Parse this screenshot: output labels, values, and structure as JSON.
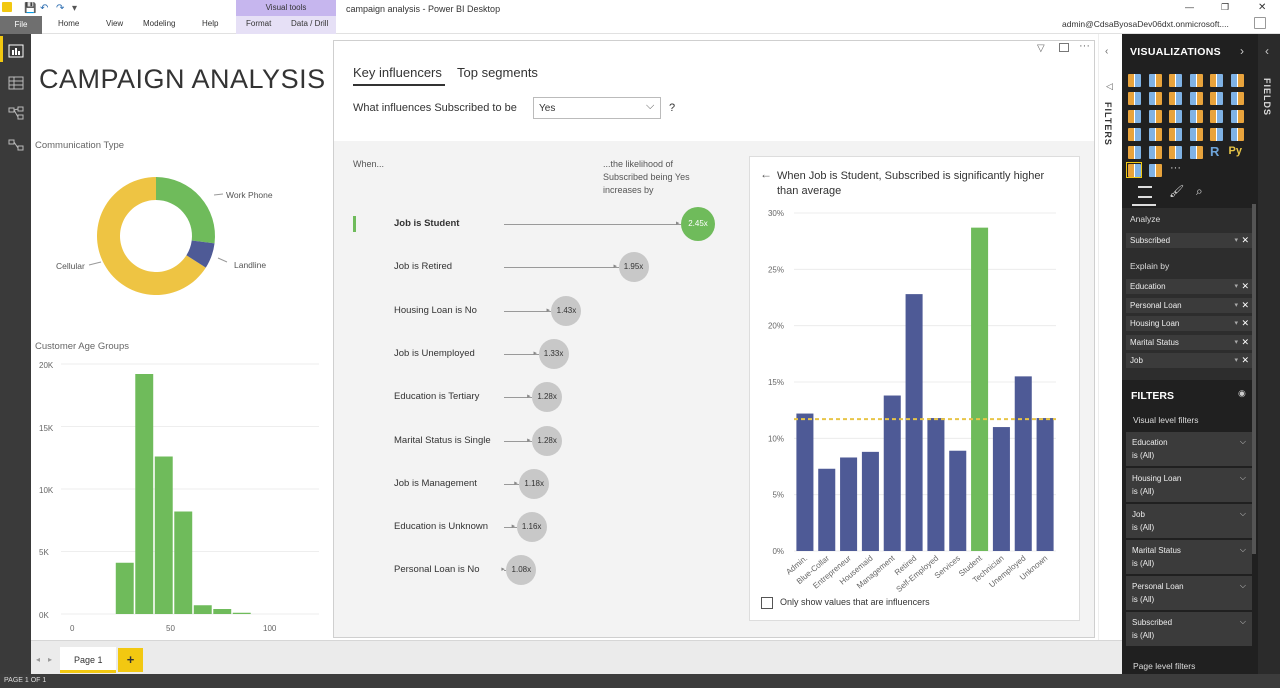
{
  "window": {
    "title": "campaign analysis - Power BI Desktop",
    "user": "admin@CdsaByosaDev06dxt.onmicrosoft....",
    "buttons": [
      "—",
      "❐",
      "✕"
    ]
  },
  "ribbon": {
    "file": "File",
    "tabs": [
      "Home",
      "View",
      "Modeling",
      "Help"
    ],
    "visual_tools": "Visual tools",
    "format": "Format",
    "data_drill": "Data / Drill"
  },
  "report": {
    "title": "CAMPAIGN ANALYSIS"
  },
  "donut": {
    "title": "Communication Type",
    "labels": {
      "cellular": "Cellular",
      "work": "Work Phone",
      "landline": "Landline"
    },
    "chart_data": {
      "type": "pie",
      "categories": [
        "Cellular",
        "Work Phone",
        "Landline"
      ],
      "values": [
        66,
        27,
        7
      ]
    },
    "colors": {
      "cellular": "#eec443",
      "work": "#6fbb5b",
      "landline": "#4e5a96"
    }
  },
  "histogram": {
    "title": "Customer Age Groups",
    "y_ticks": [
      "20K",
      "15K",
      "10K",
      "5K",
      "0K"
    ],
    "x_ticks": [
      "0",
      "50",
      "100"
    ]
  },
  "chart_data": [
    {
      "type": "bar",
      "title": "Customer Age Groups",
      "x": [
        25,
        35,
        45,
        55,
        65,
        75,
        85
      ],
      "values": [
        4100,
        19200,
        12600,
        8200,
        700,
        400,
        100
      ],
      "ylim": [
        0,
        20000
      ],
      "xlim": [
        0,
        100
      ]
    },
    {
      "type": "bar",
      "title": "When Job is Student, Subscribed is significantly higher than average",
      "categories": [
        "Admin.",
        "Blue-Collar",
        "Entrepreneur",
        "Housemaid",
        "Management",
        "Retired",
        "Self-Employed",
        "Services",
        "Student",
        "Technician",
        "Unemployed",
        "Unknown"
      ],
      "values": [
        12.2,
        7.3,
        8.3,
        8.8,
        13.8,
        22.8,
        11.8,
        8.9,
        28.7,
        11.0,
        15.5,
        11.8
      ],
      "ylim": [
        0,
        30
      ],
      "average": 11.7,
      "highlight": "Student"
    }
  ],
  "ki": {
    "tab1": "Key influencers",
    "tab2": "Top segments",
    "question": "What influences Subscribed to be",
    "dropdown": "Yes",
    "help": "?",
    "when": "When...",
    "likelihood": "...the likelihood of Subscribed being Yes increases by",
    "rows": [
      {
        "label": "Job is Student",
        "value": "2.45x"
      },
      {
        "label": "Job is Retired",
        "value": "1.95x"
      },
      {
        "label": "Housing Loan is No",
        "value": "1.43x"
      },
      {
        "label": "Job is Unemployed",
        "value": "1.33x"
      },
      {
        "label": "Education is Tertiary",
        "value": "1.28x"
      },
      {
        "label": "Marital Status is Single",
        "value": "1.28x"
      },
      {
        "label": "Job is Management",
        "value": "1.18x"
      },
      {
        "label": "Education is Unknown",
        "value": "1.16x"
      },
      {
        "label": "Personal Loan is No",
        "value": "1.08x"
      }
    ],
    "detail_title": "When Job is Student, Subscribed is significantly higher than average",
    "y_ticks": [
      "30%",
      "25%",
      "20%",
      "15%",
      "10%",
      "5%",
      "0%"
    ],
    "checkbox": "Only show values that are influencers"
  },
  "pages": {
    "tab": "Page 1",
    "add": "+",
    "status": "PAGE 1 OF 1"
  },
  "panes": {
    "filters_strip": "FILTERS",
    "fields_strip": "FIELDS"
  },
  "viz": {
    "header": "VISUALIZATIONS",
    "analyze": "Analyze",
    "analyze_field": "Subscribed",
    "explain_by": "Explain by",
    "explain_fields": [
      "Education",
      "Personal Loan",
      "Housing Loan",
      "Marital Status",
      "Job"
    ],
    "filters_header": "FILTERS",
    "visual_level": "Visual level filters",
    "filters": [
      {
        "name": "Education",
        "state": "is (All)"
      },
      {
        "name": "Housing Loan",
        "state": "is (All)"
      },
      {
        "name": "Job",
        "state": "is (All)"
      },
      {
        "name": "Marital Status",
        "state": "is (All)"
      },
      {
        "name": "Personal Loan",
        "state": "is (All)"
      },
      {
        "name": "Subscribed",
        "state": "is (All)"
      }
    ],
    "page_level": "Page level filters"
  }
}
